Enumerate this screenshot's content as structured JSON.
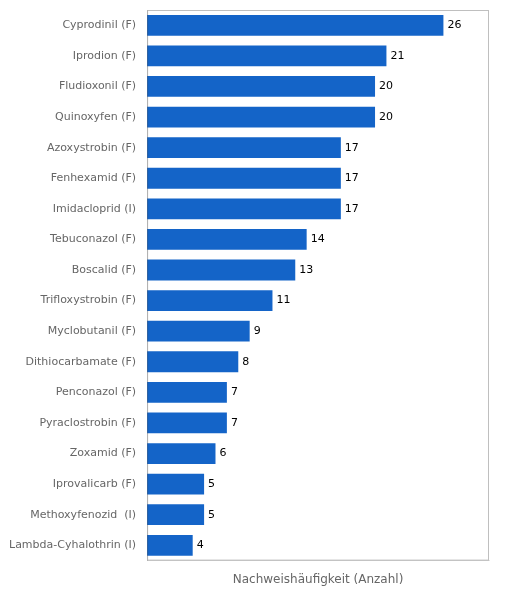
{
  "chart_data": {
    "type": "bar",
    "orientation": "horizontal",
    "categories": [
      "Lambda-Cyhalothrin (I)",
      "Methoxyfenozid  (I)",
      "Iprovalicarb (F)",
      "Zoxamid (F)",
      "Pyraclostrobin (F)",
      "Penconazol (F)",
      "Dithiocarbamate (F)",
      "Myclobutanil (F)",
      "Trifloxystrobin (F)",
      "Boscalid (F)",
      "Tebuconazol (F)",
      "Imidacloprid (I)",
      "Fenhexamid (F)",
      "Azoxystrobin (F)",
      "Quinoxyfen (F)",
      "Fludioxonil (F)",
      "Iprodion (F)",
      "Cyprodinil (F)"
    ],
    "values": [
      4,
      5,
      5,
      6,
      7,
      7,
      8,
      9,
      11,
      13,
      14,
      17,
      17,
      17,
      20,
      20,
      21,
      26
    ],
    "color": "#1464c8",
    "xlabel": "Nachweishäufigkeit (Anzahl)",
    "xlim": [
      0,
      30
    ],
    "xticks": [],
    "grid": false,
    "data_labels": true,
    "tick_labels": "y"
  }
}
